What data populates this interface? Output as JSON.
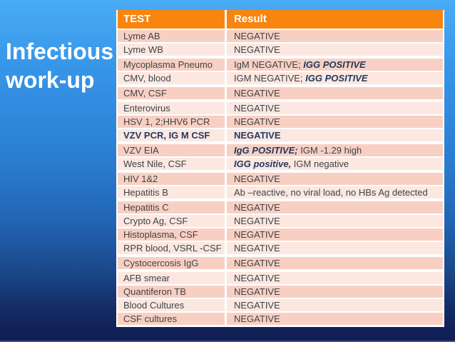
{
  "title": {
    "line1": "Infectious",
    "line2": "work-up"
  },
  "table": {
    "headers": [
      "TEST",
      "Result"
    ],
    "rows": [
      {
        "test": "Lyme AB",
        "test_bold": false,
        "shade": "dark",
        "break_after": false,
        "result": [
          {
            "t": "NEGATIVE",
            "s": "n"
          }
        ]
      },
      {
        "test": "Lyme WB",
        "test_bold": false,
        "shade": "light",
        "break_after": true,
        "result": [
          {
            "t": "NEGATIVE",
            "s": "n"
          }
        ]
      },
      {
        "test": "Mycoplasma Pneumo",
        "test_bold": false,
        "shade": "dark",
        "break_after": false,
        "result": [
          {
            "t": "IgM NEGATIVE; ",
            "s": "n"
          },
          {
            "t": "IGG POSITIVE",
            "s": "bi"
          }
        ]
      },
      {
        "test": "CMV, blood",
        "test_bold": false,
        "shade": "light",
        "break_after": true,
        "result": [
          {
            "t": "IGM NEGATIVE; ",
            "s": "n"
          },
          {
            "t": "IGG POSITIVE",
            "s": "bi"
          }
        ]
      },
      {
        "test": "CMV, CSF",
        "test_bold": false,
        "shade": "dark",
        "break_after": true,
        "result": [
          {
            "t": "NEGATIVE",
            "s": "n"
          }
        ]
      },
      {
        "test": "Enterovirus",
        "test_bold": false,
        "shade": "light",
        "break_after": false,
        "result": [
          {
            "t": "NEGATIVE",
            "s": "n"
          }
        ]
      },
      {
        "test": "HSV 1, 2;HHV6 PCR",
        "test_bold": false,
        "shade": "dark",
        "break_after": false,
        "result": [
          {
            "t": "NEGATIVE",
            "s": "n"
          }
        ]
      },
      {
        "test": "VZV PCR, IG M CSF",
        "test_bold": true,
        "shade": "light",
        "break_after": true,
        "result": [
          {
            "t": "NEGATIVE",
            "s": "b"
          }
        ]
      },
      {
        "test": "VZV EIA",
        "test_bold": false,
        "shade": "dark",
        "break_after": false,
        "result": [
          {
            "t": "IgG POSITIVE;",
            "s": "bi"
          },
          {
            "t": " IGM -1.29 high",
            "s": "n"
          }
        ]
      },
      {
        "test": "West Nile, CSF",
        "test_bold": false,
        "shade": "light",
        "break_after": true,
        "result": [
          {
            "t": "IGG positive,",
            "s": "bi"
          },
          {
            "t": " IGM negative",
            "s": "n"
          }
        ]
      },
      {
        "test": "HIV 1&2",
        "test_bold": false,
        "shade": "dark",
        "break_after": false,
        "result": [
          {
            "t": "NEGATIVE",
            "s": "n"
          }
        ]
      },
      {
        "test": "Hepatitis B",
        "test_bold": false,
        "shade": "light",
        "break_after": true,
        "result": [
          {
            "t": "Ab –reactive, no viral load, no HBs Ag detected",
            "s": "n"
          }
        ]
      },
      {
        "test": "Hepatitis C",
        "test_bold": false,
        "shade": "dark",
        "break_after": false,
        "result": [
          {
            "t": "NEGATIVE",
            "s": "n"
          }
        ]
      },
      {
        "test": "Crypto Ag, CSF",
        "test_bold": false,
        "shade": "light",
        "break_after": false,
        "result": [
          {
            "t": "NEGATIVE",
            "s": "n"
          }
        ]
      },
      {
        "test": "Histoplasma, CSF",
        "test_bold": false,
        "shade": "dark",
        "break_after": false,
        "result": [
          {
            "t": "NEGATIVE",
            "s": "n"
          }
        ]
      },
      {
        "test": "RPR blood, VSRL -CSF",
        "test_bold": false,
        "shade": "light",
        "break_after": true,
        "result": [
          {
            "t": "NEGATIVE",
            "s": "n"
          }
        ]
      },
      {
        "test": "Cystocercosis IgG",
        "test_bold": false,
        "shade": "dark",
        "break_after": true,
        "result": [
          {
            "t": "NEGATIVE",
            "s": "n"
          }
        ]
      },
      {
        "test": "AFB smear",
        "test_bold": false,
        "shade": "light",
        "break_after": false,
        "result": [
          {
            "t": "NEGATIVE",
            "s": "n"
          }
        ]
      },
      {
        "test": "Quantiferon TB",
        "test_bold": false,
        "shade": "dark",
        "break_after": false,
        "result": [
          {
            "t": "NEGATIVE",
            "s": "n"
          }
        ]
      },
      {
        "test": "Blood Cultures",
        "test_bold": false,
        "shade": "light",
        "break_after": false,
        "result": [
          {
            "t": "NEGATIVE",
            "s": "n"
          }
        ]
      },
      {
        "test": "CSF cultures",
        "test_bold": false,
        "shade": "dark",
        "break_after": false,
        "result": [
          {
            "t": "NEGATIVE",
            "s": "n"
          }
        ]
      }
    ]
  },
  "colors": {
    "header-bg": "#F8850F",
    "header-text": "#FFFFFF",
    "row-dark": "#F8D0C3",
    "row-light": "#FCE8E1",
    "cell-text": "#3E4347",
    "emphasis-text": "#1F3A5F",
    "title-text": "#FFFFFF",
    "bg-top": "#49ACF6",
    "bg-mid": "#2B7FD2",
    "bg-deep": "#1A4688",
    "bg-bottom": "#101C50",
    "bottom-line": "#3D4E96"
  }
}
